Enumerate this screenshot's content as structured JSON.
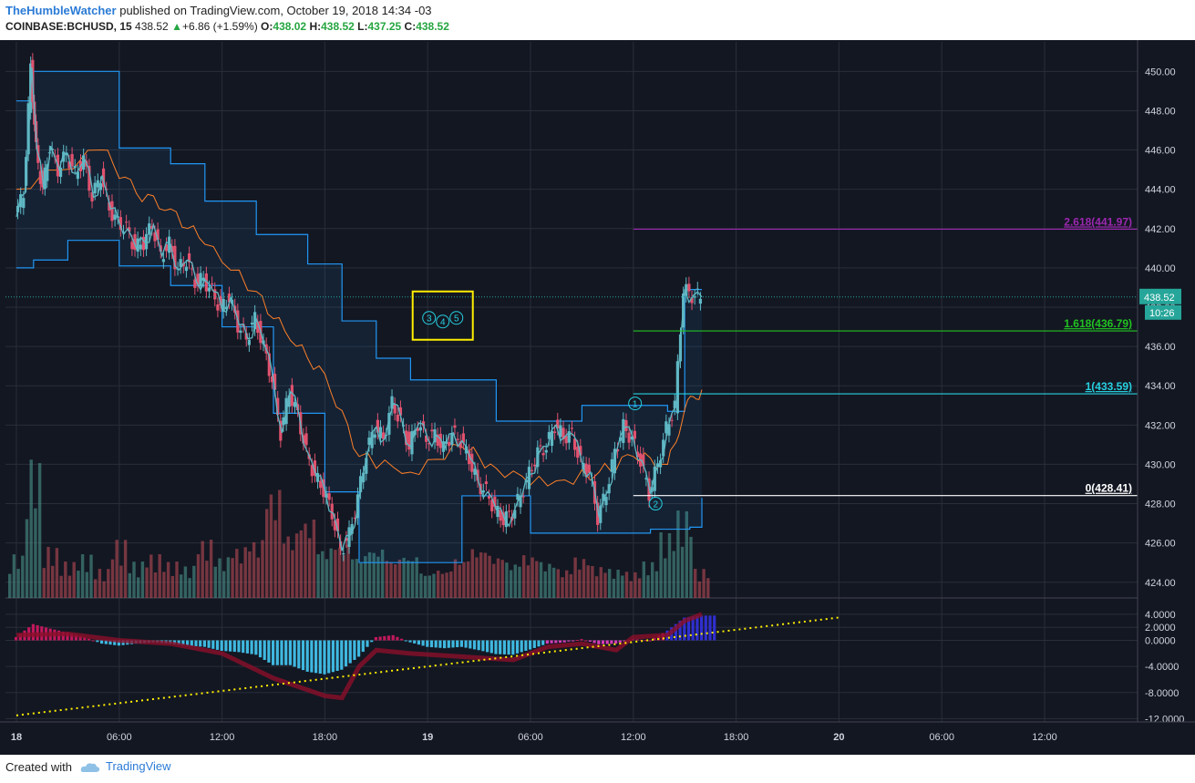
{
  "header": {
    "user": "TheHumbleWatcher",
    "published": "published on TradingView.com, October 19, 2018 14:34 -03",
    "symbol": "COINBASE:BCHUSD, 15",
    "price": "438.52",
    "change": "+6.86 (+1.59%)",
    "o_label": "O:",
    "o": "438.02",
    "h_label": "H:",
    "h": "438.52",
    "l_label": "L:",
    "l": "437.25",
    "c_label": "C:",
    "c": "438.52"
  },
  "footer": {
    "created": "Created with",
    "brand": "TradingView"
  },
  "colors": {
    "background": "#131722",
    "grid": "#2a2e39",
    "channel": "#2196f3",
    "mid": "#ff7f27",
    "up": "#5fb8c4",
    "down": "#e0526e",
    "fib_2618": "#9c27b0",
    "fib_1618": "#21c321",
    "fib_1": "#27d0e0",
    "fib_0": "#ffffff",
    "box": "#ffee00",
    "trend": "#ffee00"
  },
  "chart_data": [
    {
      "type": "line",
      "panel": "price",
      "x_labels": [
        "18",
        "06:00",
        "12:00",
        "18:00",
        "19",
        "06:00",
        "12:00",
        "18:00",
        "20",
        "06:00",
        "12:00"
      ],
      "x_unit": "hours from 18 Oct 00:00",
      "ylim": [
        423.2,
        451.5
      ],
      "y_ticks": [
        "450.00",
        "448.00",
        "446.00",
        "444.00",
        "442.00",
        "440.00",
        "438.00",
        "436.00",
        "434.00",
        "432.00",
        "430.00",
        "428.00",
        "426.00",
        "424.00"
      ],
      "price_close_path": [
        [
          0,
          442.6
        ],
        [
          0.5,
          443.8
        ],
        [
          0.9,
          450.2
        ],
        [
          1.2,
          446.0
        ],
        [
          1.6,
          444.0
        ],
        [
          2.0,
          446.2
        ],
        [
          2.5,
          445.0
        ],
        [
          3.0,
          445.8
        ],
        [
          3.5,
          444.8
        ],
        [
          4.0,
          445.5
        ],
        [
          4.5,
          443.6
        ],
        [
          5.0,
          444.7
        ],
        [
          5.5,
          443.0
        ],
        [
          6.0,
          442.3
        ],
        [
          6.5,
          442.0
        ],
        [
          7.0,
          441.0
        ],
        [
          7.5,
          441.3
        ],
        [
          8.0,
          442.2
        ],
        [
          8.5,
          440.6
        ],
        [
          9.0,
          441.2
        ],
        [
          9.5,
          439.9
        ],
        [
          10.0,
          440.4
        ],
        [
          10.5,
          439.3
        ],
        [
          11.0,
          439.4
        ],
        [
          11.5,
          438.8
        ],
        [
          12.0,
          437.9
        ],
        [
          12.5,
          438.5
        ],
        [
          13.0,
          437.1
        ],
        [
          13.5,
          436.4
        ],
        [
          14.0,
          437.4
        ],
        [
          14.5,
          436.0
        ],
        [
          15.0,
          434.3
        ],
        [
          15.5,
          431.6
        ],
        [
          16.0,
          433.7
        ],
        [
          16.5,
          432.5
        ],
        [
          17.0,
          430.6
        ],
        [
          17.5,
          429.4
        ],
        [
          18.0,
          428.7
        ],
        [
          18.5,
          427.5
        ],
        [
          19.0,
          425.6
        ],
        [
          19.5,
          426.4
        ],
        [
          20.0,
          428.3
        ],
        [
          20.5,
          430.6
        ],
        [
          21.0,
          431.9
        ],
        [
          21.5,
          431.3
        ],
        [
          22.0,
          433.1
        ],
        [
          22.5,
          432.2
        ],
        [
          23.0,
          430.9
        ],
        [
          23.5,
          432.1
        ],
        [
          24.0,
          431.3
        ],
        [
          24.5,
          431.5
        ],
        [
          25.0,
          430.8
        ],
        [
          25.5,
          431.6
        ],
        [
          26.0,
          431.2
        ],
        [
          26.5,
          430.3
        ],
        [
          27.0,
          429.0
        ],
        [
          27.5,
          428.6
        ],
        [
          28.0,
          427.7
        ],
        [
          28.5,
          427.2
        ],
        [
          29.0,
          427.5
        ],
        [
          29.5,
          428.4
        ],
        [
          30.0,
          429.5
        ],
        [
          30.5,
          430.6
        ],
        [
          31.0,
          430.9
        ],
        [
          31.5,
          432.0
        ],
        [
          32.0,
          431.4
        ],
        [
          32.5,
          431.5
        ],
        [
          33.0,
          430.1
        ],
        [
          33.5,
          429.6
        ],
        [
          34.0,
          427.3
        ],
        [
          34.5,
          428.6
        ],
        [
          35.0,
          430.6
        ],
        [
          35.5,
          431.9
        ],
        [
          36.0,
          431.3
        ],
        [
          36.5,
          430.2
        ],
        [
          37.0,
          428.5
        ],
        [
          37.5,
          430.0
        ],
        [
          38.0,
          431.8
        ],
        [
          38.5,
          433.0
        ],
        [
          39.0,
          438.9
        ],
        [
          39.5,
          438.6
        ],
        [
          40.0,
          438.52
        ]
      ],
      "upper_channel": [
        [
          0,
          448.5
        ],
        [
          1,
          450.0
        ],
        [
          6,
          446.1
        ],
        [
          9,
          445.3
        ],
        [
          11,
          443.4
        ],
        [
          14,
          441.7
        ],
        [
          17,
          440.2
        ],
        [
          19,
          437.3
        ],
        [
          21,
          435.4
        ],
        [
          23,
          434.3
        ],
        [
          28,
          432.2
        ],
        [
          33,
          433.0
        ],
        [
          38,
          432.7
        ],
        [
          39,
          438.9
        ],
        [
          40,
          438.9
        ]
      ],
      "lower_channel": [
        [
          0,
          440.0
        ],
        [
          1,
          440.4
        ],
        [
          3,
          441.4
        ],
        [
          6,
          440.1
        ],
        [
          9,
          439.1
        ],
        [
          12,
          437.0
        ],
        [
          15,
          432.6
        ],
        [
          18,
          428.6
        ],
        [
          20,
          425.0
        ],
        [
          24,
          425.0
        ],
        [
          26,
          428.4
        ],
        [
          30,
          426.5
        ],
        [
          34,
          426.5
        ],
        [
          37,
          426.7
        ],
        [
          39.3,
          426.8
        ],
        [
          40,
          428.3
        ]
      ],
      "middle_line": [
        [
          0,
          444.0
        ],
        [
          5,
          446.0
        ],
        [
          7,
          443.8
        ],
        [
          9,
          443.0
        ],
        [
          11,
          441.2
        ],
        [
          14,
          438.8
        ],
        [
          16,
          436.3
        ],
        [
          18,
          434.6
        ],
        [
          20,
          430.4
        ],
        [
          23,
          429.6
        ],
        [
          26,
          430.9
        ],
        [
          28,
          429.8
        ],
        [
          31,
          428.9
        ],
        [
          34,
          429.6
        ],
        [
          36,
          430.4
        ],
        [
          38,
          430.0
        ],
        [
          39,
          432.8
        ],
        [
          40,
          433.8
        ]
      ],
      "current_price_line": 438.52,
      "fib_levels": [
        {
          "label": "2.618(441.97)",
          "value": 441.97
        },
        {
          "label": "1.618(436.79)",
          "value": 436.79
        },
        {
          "label": "1(433.59)",
          "value": 433.59
        },
        {
          "label": "0(428.41)",
          "value": 428.41
        }
      ],
      "wave_labels_box": [
        "3",
        "4",
        "5"
      ],
      "wave_labels": [
        {
          "label": "1",
          "x": 36.1,
          "y": 433.1
        },
        {
          "label": "2",
          "x": 37.3,
          "y": 428.0
        }
      ],
      "price_badge": "438.52",
      "countdown_badge": "10:26",
      "volume": [
        {
          "x": 0,
          "v": 0.3,
          "up": true
        },
        {
          "x": 1,
          "v": 0.95,
          "up": true
        },
        {
          "x": 2,
          "v": 0.35,
          "up": false
        },
        {
          "x": 3,
          "v": 0.25,
          "up": false
        },
        {
          "x": 4,
          "v": 0.3,
          "up": true
        },
        {
          "x": 5,
          "v": 0.2,
          "up": false
        },
        {
          "x": 6,
          "v": 0.4,
          "up": false
        },
        {
          "x": 7,
          "v": 0.25,
          "up": true
        },
        {
          "x": 8,
          "v": 0.3,
          "up": false
        },
        {
          "x": 9,
          "v": 0.25,
          "up": false
        },
        {
          "x": 10,
          "v": 0.22,
          "up": true
        },
        {
          "x": 11,
          "v": 0.4,
          "up": false
        },
        {
          "x": 12,
          "v": 0.28,
          "up": true
        },
        {
          "x": 13,
          "v": 0.35,
          "up": false
        },
        {
          "x": 14,
          "v": 0.4,
          "up": false
        },
        {
          "x": 15,
          "v": 0.75,
          "up": false
        },
        {
          "x": 16,
          "v": 0.45,
          "up": false
        },
        {
          "x": 17,
          "v": 0.55,
          "up": false
        },
        {
          "x": 18,
          "v": 0.35,
          "up": true
        },
        {
          "x": 19,
          "v": 0.38,
          "up": false
        },
        {
          "x": 20,
          "v": 0.3,
          "up": true
        },
        {
          "x": 21,
          "v": 0.35,
          "up": true
        },
        {
          "x": 22,
          "v": 0.28,
          "up": false
        },
        {
          "x": 23,
          "v": 0.3,
          "up": true
        },
        {
          "x": 24,
          "v": 0.18,
          "up": true
        },
        {
          "x": 25,
          "v": 0.2,
          "up": false
        },
        {
          "x": 26,
          "v": 0.28,
          "up": false
        },
        {
          "x": 27,
          "v": 0.35,
          "up": false
        },
        {
          "x": 28,
          "v": 0.3,
          "up": false
        },
        {
          "x": 29,
          "v": 0.25,
          "up": true
        },
        {
          "x": 30,
          "v": 0.3,
          "up": false
        },
        {
          "x": 31,
          "v": 0.25,
          "up": true
        },
        {
          "x": 32,
          "v": 0.2,
          "up": false
        },
        {
          "x": 33,
          "v": 0.28,
          "up": false
        },
        {
          "x": 34,
          "v": 0.22,
          "up": false
        },
        {
          "x": 35,
          "v": 0.2,
          "up": true
        },
        {
          "x": 36,
          "v": 0.18,
          "up": false
        },
        {
          "x": 37,
          "v": 0.25,
          "up": true
        },
        {
          "x": 38,
          "v": 0.45,
          "up": true
        },
        {
          "x": 39,
          "v": 0.6,
          "up": true
        },
        {
          "x": 40,
          "v": 0.2,
          "up": false
        }
      ]
    },
    {
      "type": "bar",
      "panel": "oscillator",
      "ylim": [
        -12.5,
        6.5
      ],
      "y_ticks": [
        "4.0000",
        "2.0000",
        "0.0000",
        "-4.0000",
        "-8.0000",
        "-12.0000"
      ],
      "histogram": [
        [
          0,
          0.5
        ],
        [
          1,
          2.5
        ],
        [
          2,
          1.8
        ],
        [
          3,
          1.2
        ],
        [
          4,
          0.5
        ],
        [
          5,
          -0.5
        ],
        [
          6,
          -0.8
        ],
        [
          7,
          -0.5
        ],
        [
          8,
          -0.3
        ],
        [
          9,
          -0.5
        ],
        [
          10,
          -0.8
        ],
        [
          11,
          -1.0
        ],
        [
          12,
          -1.6
        ],
        [
          13,
          -1.8
        ],
        [
          14,
          -2.2
        ],
        [
          15,
          -3.8
        ],
        [
          16,
          -3.8
        ],
        [
          17,
          -4.8
        ],
        [
          18,
          -5.2
        ],
        [
          19,
          -4.5
        ],
        [
          20,
          -2.5
        ],
        [
          21,
          0.5
        ],
        [
          22,
          0.8
        ],
        [
          23,
          -0.3
        ],
        [
          24,
          -1.0
        ],
        [
          25,
          -1.2
        ],
        [
          26,
          -1.0
        ],
        [
          27,
          -1.5
        ],
        [
          28,
          -2.1
        ],
        [
          29,
          -2.2
        ],
        [
          30,
          -1.4
        ],
        [
          31,
          -0.5
        ],
        [
          32,
          -0.3
        ],
        [
          33,
          0.2
        ],
        [
          34,
          -0.6
        ],
        [
          35,
          -0.5
        ],
        [
          36,
          0.2
        ],
        [
          37,
          0.0
        ],
        [
          38,
          1.5
        ],
        [
          39,
          3.5
        ],
        [
          40,
          3.8
        ]
      ],
      "signal": [
        [
          0,
          0.8
        ],
        [
          3,
          1.0
        ],
        [
          6,
          0.0
        ],
        [
          9,
          -0.5
        ],
        [
          12,
          -2.0
        ],
        [
          15,
          -5.8
        ],
        [
          18,
          -8.5
        ],
        [
          19,
          -8.8
        ],
        [
          20,
          -4.0
        ],
        [
          21,
          -1.5
        ],
        [
          23,
          -2.0
        ],
        [
          26,
          -2.5
        ],
        [
          29,
          -3.0
        ],
        [
          31,
          -1.0
        ],
        [
          33,
          -0.5
        ],
        [
          35,
          -1.5
        ],
        [
          36,
          0.5
        ],
        [
          38,
          0.8
        ],
        [
          39,
          3.0
        ],
        [
          40,
          4.0
        ]
      ],
      "trendline": [
        [
          0,
          -11.5
        ],
        [
          48,
          3.5
        ]
      ]
    }
  ]
}
